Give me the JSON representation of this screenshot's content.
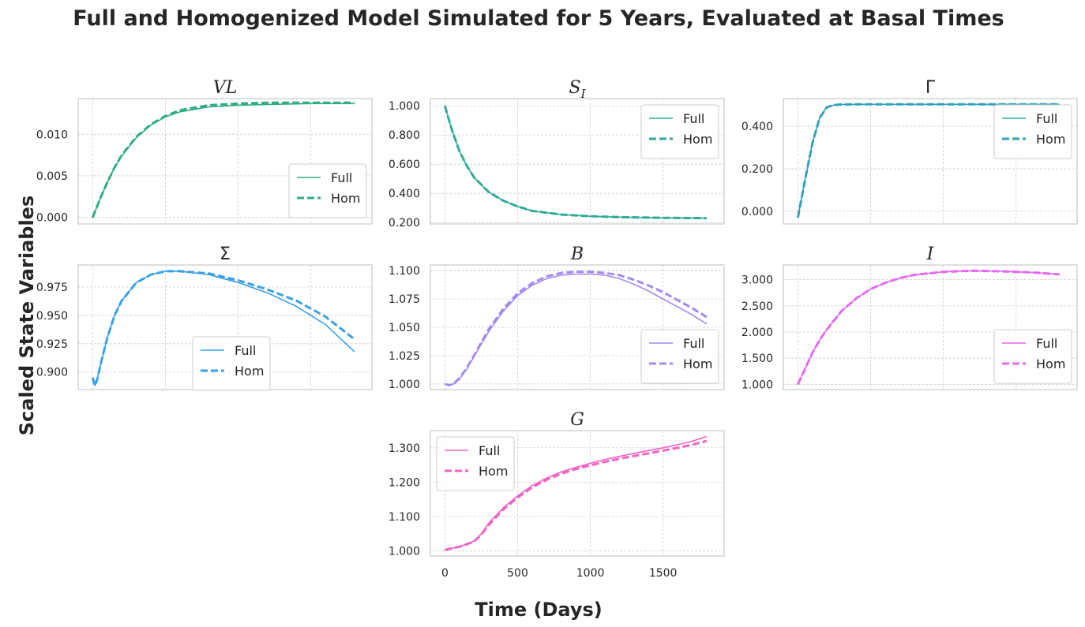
{
  "figure": {
    "title": "Full and Homogenized Model Simulated for 5 Years, Evaluated at Basal Times",
    "ylabel": "Scaled State Variables",
    "xlabel": "Time (Days)"
  },
  "colors": {
    "VL": "#2fad84",
    "S_I": "#30aa9a",
    "Gamma": "#32a2b8",
    "Sigma": "#3aa1e6",
    "B": "#a48aec",
    "I": "#e469ee",
    "G": "#f063c4"
  },
  "chart_data": [
    {
      "id": "VL",
      "type": "line",
      "title": "VL",
      "italic": true,
      "color_key": "VL",
      "xlim": [
        -100,
        1920
      ],
      "ylim": [
        -0.0008,
        0.0143
      ],
      "yticks": [
        0.0,
        0.005,
        0.01
      ],
      "ytick_labels": [
        "0.000",
        "0.005",
        "0.010"
      ],
      "xticks": [
        0,
        500,
        1000,
        1500
      ],
      "xtick_labels": [],
      "legend_loc": "lower right",
      "series": [
        {
          "name": "Full",
          "style": "solid",
          "x": [
            0,
            50,
            100,
            150,
            200,
            300,
            400,
            500,
            600,
            800,
            1000,
            1200,
            1500,
            1800
          ],
          "y": [
            0.0,
            0.0022,
            0.0042,
            0.006,
            0.0074,
            0.0096,
            0.0111,
            0.0121,
            0.0127,
            0.0133,
            0.0135,
            0.0136,
            0.0137,
            0.0137
          ]
        },
        {
          "name": "Hom",
          "style": "dashed",
          "x": [
            0,
            50,
            100,
            150,
            200,
            300,
            400,
            500,
            600,
            800,
            1000,
            1200,
            1500,
            1800
          ],
          "y": [
            0.0,
            0.0022,
            0.0042,
            0.006,
            0.0075,
            0.0097,
            0.0112,
            0.0122,
            0.0129,
            0.0135,
            0.0137,
            0.0138,
            0.0138,
            0.0138
          ]
        }
      ]
    },
    {
      "id": "S_I",
      "type": "line",
      "title": "S",
      "subscript": "I",
      "italic": true,
      "color_key": "S_I",
      "xlim": [
        -100,
        1920
      ],
      "ylim": [
        0.19,
        1.05
      ],
      "yticks": [
        0.2,
        0.4,
        0.6,
        0.8,
        1.0
      ],
      "ytick_labels": [
        "0.200",
        "0.400",
        "0.600",
        "0.800",
        "1.000"
      ],
      "xticks": [
        0,
        500,
        1000,
        1500
      ],
      "xtick_labels": [],
      "legend_loc": "upper right",
      "series": [
        {
          "name": "Full",
          "style": "solid",
          "x": [
            0,
            20,
            50,
            100,
            150,
            200,
            300,
            400,
            500,
            600,
            800,
            1000,
            1200,
            1500,
            1800
          ],
          "y": [
            1.0,
            0.93,
            0.83,
            0.69,
            0.59,
            0.51,
            0.41,
            0.35,
            0.31,
            0.28,
            0.255,
            0.243,
            0.237,
            0.232,
            0.23
          ]
        },
        {
          "name": "Hom",
          "style": "dashed",
          "x": [
            0,
            20,
            50,
            100,
            150,
            200,
            300,
            400,
            500,
            600,
            800,
            1000,
            1200,
            1500,
            1800
          ],
          "y": [
            1.0,
            0.93,
            0.83,
            0.69,
            0.59,
            0.51,
            0.41,
            0.35,
            0.31,
            0.28,
            0.255,
            0.243,
            0.237,
            0.232,
            0.23
          ]
        }
      ]
    },
    {
      "id": "Gamma",
      "type": "line",
      "title": "Γ",
      "italic": false,
      "color_key": "Gamma",
      "xlim": [
        -100,
        1920
      ],
      "ylim": [
        -0.06,
        0.53
      ],
      "yticks": [
        0.0,
        0.2,
        0.4
      ],
      "ytick_labels": [
        "0.000",
        "0.200",
        "0.400"
      ],
      "xticks": [
        0,
        500,
        1000,
        1500
      ],
      "xtick_labels": [],
      "legend_loc": "upper right",
      "series": [
        {
          "name": "Full",
          "style": "solid",
          "x": [
            0,
            50,
            100,
            150,
            200,
            250,
            300,
            400,
            600,
            1000,
            1500,
            1800
          ],
          "y": [
            -0.03,
            0.15,
            0.32,
            0.44,
            0.49,
            0.5,
            0.502,
            0.503,
            0.503,
            0.503,
            0.503,
            0.503
          ]
        },
        {
          "name": "Hom",
          "style": "dashed",
          "x": [
            0,
            50,
            100,
            150,
            200,
            250,
            300,
            400,
            600,
            1000,
            1500,
            1800
          ],
          "y": [
            -0.03,
            0.15,
            0.32,
            0.44,
            0.49,
            0.5,
            0.502,
            0.503,
            0.503,
            0.503,
            0.503,
            0.503
          ]
        }
      ]
    },
    {
      "id": "Sigma",
      "type": "line",
      "title": "Σ",
      "italic": false,
      "color_key": "Sigma",
      "xlim": [
        -100,
        1920
      ],
      "ylim": [
        0.8845,
        0.9945
      ],
      "yticks": [
        0.9,
        0.925,
        0.95,
        0.975
      ],
      "ytick_labels": [
        "0.900",
        "0.925",
        "0.950",
        "0.975"
      ],
      "xticks": [
        0,
        500,
        1000,
        1500
      ],
      "xtick_labels": [],
      "legend_loc": "center",
      "series": [
        {
          "name": "Full",
          "style": "solid",
          "x": [
            0,
            15,
            30,
            60,
            100,
            150,
            200,
            300,
            400,
            500,
            600,
            800,
            1000,
            1200,
            1400,
            1600,
            1800
          ],
          "y": [
            0.895,
            0.888,
            0.893,
            0.91,
            0.93,
            0.95,
            0.963,
            0.979,
            0.986,
            0.989,
            0.989,
            0.986,
            0.979,
            0.97,
            0.958,
            0.942,
            0.918
          ]
        },
        {
          "name": "Hom",
          "style": "dashed",
          "x": [
            0,
            15,
            30,
            60,
            100,
            150,
            200,
            300,
            400,
            500,
            600,
            800,
            1000,
            1200,
            1400,
            1600,
            1800
          ],
          "y": [
            0.895,
            0.888,
            0.893,
            0.91,
            0.93,
            0.95,
            0.963,
            0.979,
            0.986,
            0.989,
            0.989,
            0.987,
            0.981,
            0.973,
            0.963,
            0.949,
            0.929
          ]
        }
      ]
    },
    {
      "id": "B",
      "type": "line",
      "title": "B",
      "italic": true,
      "color_key": "B",
      "xlim": [
        -100,
        1920
      ],
      "ylim": [
        0.995,
        1.105
      ],
      "yticks": [
        1.0,
        1.025,
        1.05,
        1.075,
        1.1
      ],
      "ytick_labels": [
        "1.000",
        "1.025",
        "1.050",
        "1.075",
        "1.100"
      ],
      "xticks": [
        0,
        500,
        1000,
        1500
      ],
      "xtick_labels": [],
      "legend_loc": "lower right",
      "series": [
        {
          "name": "Full",
          "style": "solid",
          "x": [
            0,
            30,
            60,
            100,
            150,
            200,
            300,
            400,
            500,
            600,
            700,
            800,
            900,
            1000,
            1100,
            1200,
            1300,
            1400,
            1500,
            1600,
            1700,
            1800
          ],
          "y": [
            1.0,
            0.999,
            1.0,
            1.004,
            1.013,
            1.024,
            1.046,
            1.064,
            1.078,
            1.087,
            1.093,
            1.096,
            1.097,
            1.097,
            1.096,
            1.093,
            1.088,
            1.082,
            1.075,
            1.068,
            1.061,
            1.053
          ]
        },
        {
          "name": "Hom",
          "style": "dashed",
          "x": [
            0,
            30,
            60,
            100,
            150,
            200,
            300,
            400,
            500,
            600,
            700,
            800,
            900,
            1000,
            1100,
            1200,
            1300,
            1400,
            1500,
            1600,
            1700,
            1800
          ],
          "y": [
            1.0,
            0.999,
            1.0,
            1.005,
            1.014,
            1.025,
            1.048,
            1.066,
            1.08,
            1.089,
            1.095,
            1.098,
            1.099,
            1.099,
            1.098,
            1.096,
            1.092,
            1.087,
            1.081,
            1.074,
            1.067,
            1.059
          ]
        }
      ]
    },
    {
      "id": "I",
      "type": "line",
      "title": "I",
      "italic": true,
      "color_key": "I",
      "xlim": [
        -100,
        1920
      ],
      "ylim": [
        0.9,
        3.28
      ],
      "yticks": [
        1.0,
        1.5,
        2.0,
        2.5,
        3.0
      ],
      "ytick_labels": [
        "1.000",
        "1.500",
        "2.000",
        "2.500",
        "3.000"
      ],
      "xticks": [
        0,
        500,
        1000,
        1500
      ],
      "xtick_labels": [],
      "legend_loc": "lower right",
      "series": [
        {
          "name": "Full",
          "style": "solid",
          "x": [
            0,
            50,
            100,
            150,
            200,
            300,
            400,
            500,
            600,
            700,
            800,
            1000,
            1200,
            1400,
            1600,
            1800
          ],
          "y": [
            1.0,
            1.3,
            1.6,
            1.85,
            2.05,
            2.4,
            2.64,
            2.82,
            2.94,
            3.03,
            3.09,
            3.15,
            3.17,
            3.16,
            3.14,
            3.1
          ]
        },
        {
          "name": "Hom",
          "style": "dashed",
          "x": [
            0,
            50,
            100,
            150,
            200,
            300,
            400,
            500,
            600,
            700,
            800,
            1000,
            1200,
            1400,
            1600,
            1800
          ],
          "y": [
            1.0,
            1.3,
            1.6,
            1.85,
            2.05,
            2.4,
            2.64,
            2.82,
            2.94,
            3.03,
            3.09,
            3.15,
            3.17,
            3.16,
            3.14,
            3.1
          ]
        }
      ]
    },
    {
      "id": "G",
      "type": "line",
      "title": "G",
      "italic": true,
      "color_key": "G",
      "xlim": [
        -100,
        1920
      ],
      "ylim": [
        0.985,
        1.35
      ],
      "yticks": [
        1.0,
        1.1,
        1.2,
        1.3
      ],
      "ytick_labels": [
        "1.000",
        "1.100",
        "1.200",
        "1.300"
      ],
      "xticks": [
        0,
        500,
        1000,
        1500
      ],
      "xtick_labels": [
        "0",
        "500",
        "1000",
        "1500"
      ],
      "legend_loc": "upper left",
      "series": [
        {
          "name": "Full",
          "style": "solid",
          "x": [
            0,
            100,
            200,
            250,
            300,
            400,
            500,
            600,
            700,
            800,
            900,
            1000,
            1100,
            1200,
            1300,
            1400,
            1500,
            1600,
            1700,
            1800
          ],
          "y": [
            1.003,
            1.012,
            1.028,
            1.05,
            1.08,
            1.125,
            1.16,
            1.19,
            1.212,
            1.23,
            1.243,
            1.255,
            1.266,
            1.275,
            1.284,
            1.292,
            1.3,
            1.309,
            1.319,
            1.333
          ]
        },
        {
          "name": "Hom",
          "style": "dashed",
          "x": [
            0,
            100,
            200,
            250,
            300,
            400,
            500,
            600,
            700,
            800,
            900,
            1000,
            1100,
            1200,
            1300,
            1400,
            1500,
            1600,
            1700,
            1800
          ],
          "y": [
            1.003,
            1.012,
            1.027,
            1.047,
            1.075,
            1.12,
            1.155,
            1.185,
            1.207,
            1.225,
            1.238,
            1.249,
            1.259,
            1.268,
            1.276,
            1.284,
            1.292,
            1.3,
            1.309,
            1.32
          ]
        }
      ]
    }
  ]
}
